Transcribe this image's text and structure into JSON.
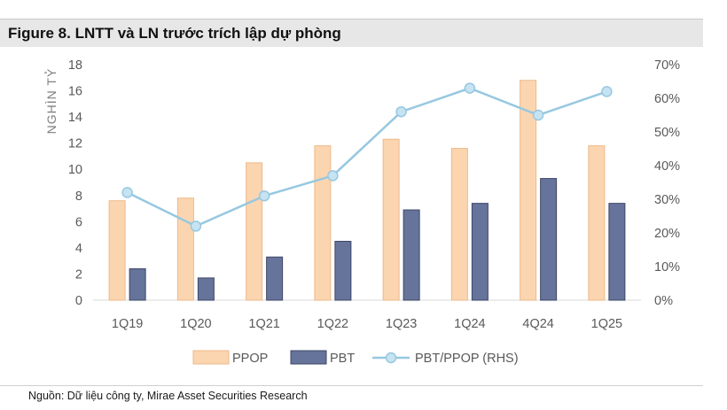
{
  "figure": {
    "title": "Figure 8. LNTT và LN trước trích lập dự phòng",
    "source": "Nguồn: Dữ liệu công ty, Mirae Asset Securities Research"
  },
  "chart_data": {
    "type": "bar",
    "title": "Figure 8. LNTT và LN trước trích lập dự phòng",
    "categories": [
      "1Q19",
      "1Q20",
      "1Q21",
      "1Q22",
      "1Q23",
      "1Q24",
      "4Q24",
      "1Q25"
    ],
    "series": [
      {
        "name": "PPOP",
        "type": "bar",
        "axis": "left",
        "color": "#fbd5b0",
        "stroke": "#eeb98a",
        "values": [
          7.6,
          7.8,
          10.5,
          11.8,
          12.3,
          11.6,
          16.8,
          11.8
        ]
      },
      {
        "name": "PBT",
        "type": "bar",
        "axis": "left",
        "color": "#66739a",
        "stroke": "#3e4766",
        "values": [
          2.4,
          1.7,
          3.3,
          4.5,
          6.9,
          7.4,
          9.3,
          7.4
        ]
      },
      {
        "name": "PBT/PPOP (RHS)",
        "type": "line",
        "axis": "right",
        "color": "#97c8e0",
        "marker": "#c6e3f1",
        "values": [
          0.32,
          0.22,
          0.31,
          0.37,
          0.56,
          0.63,
          0.55,
          0.62
        ]
      }
    ],
    "ylabel": "NGHÌN TỶ",
    "ylim": [
      0,
      18
    ],
    "yticks": [
      "0",
      "2",
      "4",
      "6",
      "8",
      "10",
      "12",
      "14",
      "16",
      "18"
    ],
    "y2lim": [
      0,
      0.7
    ],
    "y2ticks": [
      "0%",
      "10%",
      "20%",
      "30%",
      "40%",
      "50%",
      "60%",
      "70%"
    ],
    "legend": [
      "PPOP",
      "PBT",
      "PBT/PPOP (RHS)"
    ],
    "legend_position": "bottom",
    "grid": false
  }
}
